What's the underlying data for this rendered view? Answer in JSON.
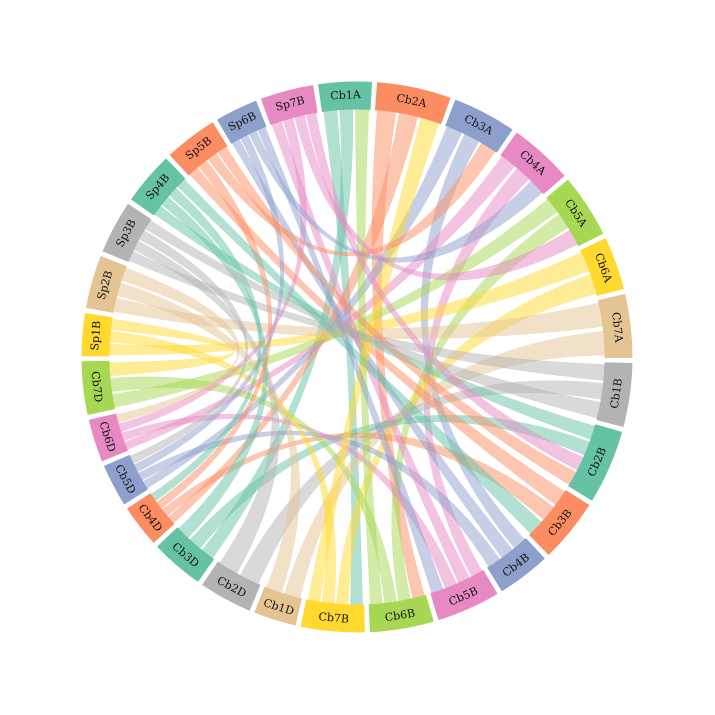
{
  "segments": [
    {
      "label": "Cb1A",
      "color": "#66c2a5",
      "size": 5
    },
    {
      "label": "Cb2A",
      "color": "#fc8d62",
      "size": 7
    },
    {
      "label": "Cb3A",
      "color": "#8da0cb",
      "size": 6
    },
    {
      "label": "Cb4A",
      "color": "#e78ac3",
      "size": 6
    },
    {
      "label": "Cb5A",
      "color": "#a6d854",
      "size": 6
    },
    {
      "label": "Cb6A",
      "color": "#ffd92f",
      "size": 5
    },
    {
      "label": "Cb7A",
      "color": "#e5c494",
      "size": 6
    },
    {
      "label": "Cb1B",
      "color": "#b3b3b3",
      "size": 6
    },
    {
      "label": "Cb2B",
      "color": "#66c2a5",
      "size": 7
    },
    {
      "label": "Cb3B",
      "color": "#fc8d62",
      "size": 6
    },
    {
      "label": "Cb4B",
      "color": "#8da0cb",
      "size": 5
    },
    {
      "label": "Cb5B",
      "color": "#e78ac3",
      "size": 6
    },
    {
      "label": "Cb6B",
      "color": "#a6d854",
      "size": 6
    },
    {
      "label": "Cb7B",
      "color": "#ffd92f",
      "size": 6
    },
    {
      "label": "Cb1D",
      "color": "#e5c494",
      "size": 4
    },
    {
      "label": "Cb2D",
      "color": "#b3b3b3",
      "size": 5
    },
    {
      "label": "Cb3D",
      "color": "#66c2a5",
      "size": 5
    },
    {
      "label": "Cb4D",
      "color": "#fc8d62",
      "size": 4
    },
    {
      "label": "Cb5D",
      "color": "#8da0cb",
      "size": 4
    },
    {
      "label": "Cb6D",
      "color": "#e78ac3",
      "size": 4
    },
    {
      "label": "Cb7D",
      "color": "#a6d854",
      "size": 5
    },
    {
      "label": "Sp1B",
      "color": "#ffd92f",
      "size": 4
    },
    {
      "label": "Sp2B",
      "color": "#e5c494",
      "size": 5
    },
    {
      "label": "Sp3B",
      "color": "#b3b3b3",
      "size": 5
    },
    {
      "label": "Sp4B",
      "color": "#66c2a5",
      "size": 5
    },
    {
      "label": "Sp5B",
      "color": "#fc8d62",
      "size": 5
    },
    {
      "label": "Sp6B",
      "color": "#8da0cb",
      "size": 4
    },
    {
      "label": "Sp7B",
      "color": "#e78ac3",
      "size": 5
    }
  ],
  "links": [
    [
      "Cb1A",
      "Cb7B"
    ],
    [
      "Cb1A",
      "Cb3D"
    ],
    [
      "Cb2A",
      "Cb6B"
    ],
    [
      "Cb2A",
      "Cb4D"
    ],
    [
      "Cb3A",
      "Cb5D"
    ],
    [
      "Cb3A",
      "Cb4B"
    ],
    [
      "Cb4A",
      "Cb6D"
    ],
    [
      "Cb4A",
      "Cb5B"
    ],
    [
      "Cb5A",
      "Cb7D"
    ],
    [
      "Cb5A",
      "Cb6B"
    ],
    [
      "Cb6A",
      "Sp1B"
    ],
    [
      "Cb6A",
      "Cb7B"
    ],
    [
      "Cb7A",
      "Sp2B"
    ],
    [
      "Cb7A",
      "Cb1D"
    ],
    [
      "Cb1B",
      "Sp3B"
    ],
    [
      "Cb1B",
      "Cb2D"
    ],
    [
      "Cb2B",
      "Sp4B"
    ],
    [
      "Cb2B",
      "Cb3D"
    ],
    [
      "Cb3B",
      "Sp5B"
    ],
    [
      "Cb3B",
      "Cb4D"
    ],
    [
      "Cb4B",
      "Sp6B"
    ],
    [
      "Cb4B",
      "Cb5D"
    ],
    [
      "Cb5B",
      "Sp7B"
    ],
    [
      "Cb5B",
      "Cb6D"
    ],
    [
      "Cb6B",
      "Cb7D"
    ],
    [
      "Cb6B",
      "Cb1A"
    ],
    [
      "Cb7B",
      "Sp1B"
    ],
    [
      "Cb7B",
      "Cb2A"
    ],
    [
      "Cb1D",
      "Sp2B"
    ],
    [
      "Cb2D",
      "Sp3B"
    ],
    [
      "Cb3D",
      "Sp4B"
    ],
    [
      "Cb4D",
      "Sp5B"
    ],
    [
      "Cb5D",
      "Sp6B"
    ],
    [
      "Cb6D",
      "Sp7B"
    ],
    [
      "Sp1B",
      "Cb7D"
    ],
    [
      "Sp2B",
      "Cb6D"
    ],
    [
      "Sp3B",
      "Cb5D"
    ],
    [
      "Sp4B",
      "Cb4D"
    ],
    [
      "Sp5B",
      "Cb3A"
    ],
    [
      "Sp6B",
      "Cb4A"
    ],
    [
      "Sp7B",
      "Cb5A"
    ],
    [
      "Sp7B",
      "Cb2B"
    ],
    [
      "Sp5B",
      "Cb2B"
    ],
    [
      "Sp3B",
      "Cb1B"
    ],
    [
      "Sp4B",
      "Cb3B"
    ],
    [
      "Sp6B",
      "Cb5B"
    ]
  ]
}
